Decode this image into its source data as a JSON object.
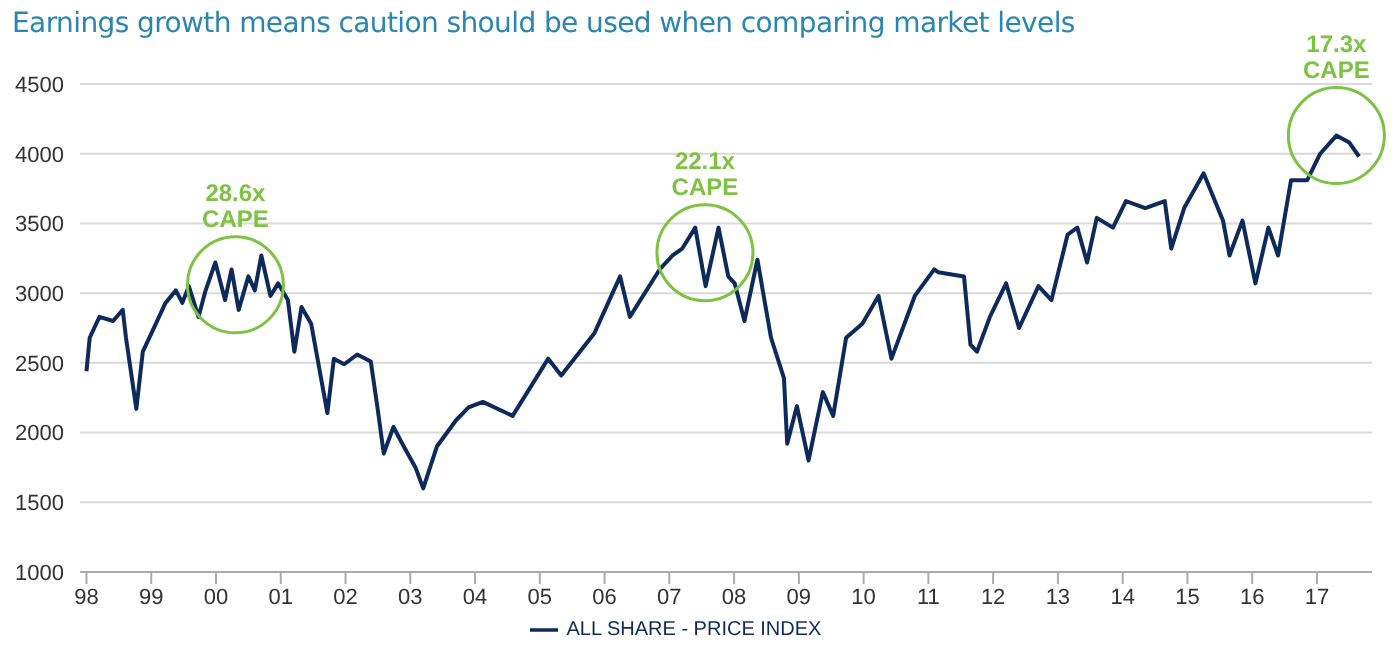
{
  "chart_data": {
    "type": "line",
    "title": "Earnings growth means caution should be used when comparing market levels",
    "x": [
      1998.0,
      1998.05,
      1998.2,
      1998.41,
      1998.56,
      1998.61,
      1998.77,
      1998.87,
      1999.02,
      1999.22,
      1999.38,
      1999.48,
      1999.58,
      1999.73,
      1999.84,
      1999.99,
      2000.14,
      2000.24,
      2000.35,
      2000.5,
      2000.6,
      2000.7,
      2000.84,
      2000.96,
      2001.11,
      2001.21,
      2001.32,
      2001.47,
      2001.72,
      2001.82,
      2001.98,
      2002.18,
      2002.39,
      2002.49,
      2002.59,
      2002.74,
      2002.9,
      2003.08,
      2003.2,
      2003.41,
      2003.71,
      2003.9,
      2004.12,
      2004.58,
      2005.13,
      2005.33,
      2005.84,
      2006.24,
      2006.39,
      2006.85,
      2007.05,
      2007.2,
      2007.4,
      2007.56,
      2007.76,
      2007.91,
      2008.01,
      2008.16,
      2008.36,
      2008.57,
      2008.77,
      2008.82,
      2008.97,
      2009.15,
      2009.37,
      2009.53,
      2009.73,
      2009.98,
      2010.23,
      2010.43,
      2010.79,
      2011.09,
      2011.15,
      2011.55,
      2011.65,
      2011.75,
      2011.95,
      2012.2,
      2012.4,
      2012.7,
      2012.9,
      2013.15,
      2013.3,
      2013.45,
      2013.6,
      2013.85,
      2014.05,
      2014.35,
      2014.65,
      2014.75,
      2014.95,
      2015.25,
      2015.55,
      2015.65,
      2015.85,
      2016.05,
      2016.25,
      2016.4,
      2016.6,
      2016.85,
      2017.05,
      2017.3,
      2017.5,
      2017.65
    ],
    "series": [
      {
        "name": "ALL SHARE - PRICE INDEX",
        "color": "#0e2a5a",
        "values": [
          2440,
          2680,
          2830,
          2800,
          2880,
          2680,
          2170,
          2580,
          2730,
          2930,
          3020,
          2930,
          3050,
          2830,
          3020,
          3220,
          2950,
          3170,
          2880,
          3120,
          3020,
          3270,
          2980,
          3070,
          2950,
          2580,
          2900,
          2780,
          2140,
          2530,
          2490,
          2560,
          2510,
          2190,
          1850,
          2040,
          1900,
          1750,
          1600,
          1900,
          2090,
          2180,
          2220,
          2120,
          2530,
          2410,
          2710,
          3120,
          2830,
          3170,
          3270,
          3320,
          3470,
          3050,
          3470,
          3120,
          3070,
          2800,
          3240,
          2680,
          2390,
          1920,
          2190,
          1800,
          2290,
          2120,
          2680,
          2780,
          2980,
          2530,
          2980,
          3170,
          3150,
          3120,
          2630,
          2580,
          2830,
          3070,
          2750,
          3050,
          2950,
          3420,
          3470,
          3220,
          3540,
          3470,
          3660,
          3610,
          3660,
          3320,
          3610,
          3860,
          3520,
          3270,
          3520,
          3070,
          3470,
          3270,
          3810,
          3810,
          4000,
          4130,
          4080,
          3980
        ]
      }
    ],
    "xlim": [
      1997.9,
      2017.85
    ],
    "xticks": [
      {
        "value": 1998,
        "label": "98"
      },
      {
        "value": 1999,
        "label": "99"
      },
      {
        "value": 2000,
        "label": "00"
      },
      {
        "value": 2001,
        "label": "01"
      },
      {
        "value": 2002,
        "label": "02"
      },
      {
        "value": 2003,
        "label": "03"
      },
      {
        "value": 2004,
        "label": "04"
      },
      {
        "value": 2005,
        "label": "05"
      },
      {
        "value": 2006,
        "label": "06"
      },
      {
        "value": 2007,
        "label": "07"
      },
      {
        "value": 2008,
        "label": "08"
      },
      {
        "value": 2009,
        "label": "09"
      },
      {
        "value": 2010,
        "label": "10"
      },
      {
        "value": 2011,
        "label": "11"
      },
      {
        "value": 2012,
        "label": "12"
      },
      {
        "value": 2013,
        "label": "13"
      },
      {
        "value": 2014,
        "label": "14"
      },
      {
        "value": 2015,
        "label": "15"
      },
      {
        "value": 2016,
        "label": "16"
      },
      {
        "value": 2017,
        "label": "17"
      }
    ],
    "ylim": [
      1000,
      4500
    ],
    "yticks": [
      1000,
      1500,
      2000,
      2500,
      3000,
      3500,
      4000,
      4500
    ],
    "annotations": [
      {
        "text": "28.6x CAPE",
        "x": 2000.3,
        "y": 3060
      },
      {
        "text": "22.1x CAPE",
        "x": 2007.55,
        "y": 3290
      },
      {
        "text": "17.3x CAPE",
        "x": 2017.3,
        "y": 4130
      }
    ],
    "grid": "y",
    "legend": "bottom",
    "marker": "none",
    "line_style": "solid"
  }
}
